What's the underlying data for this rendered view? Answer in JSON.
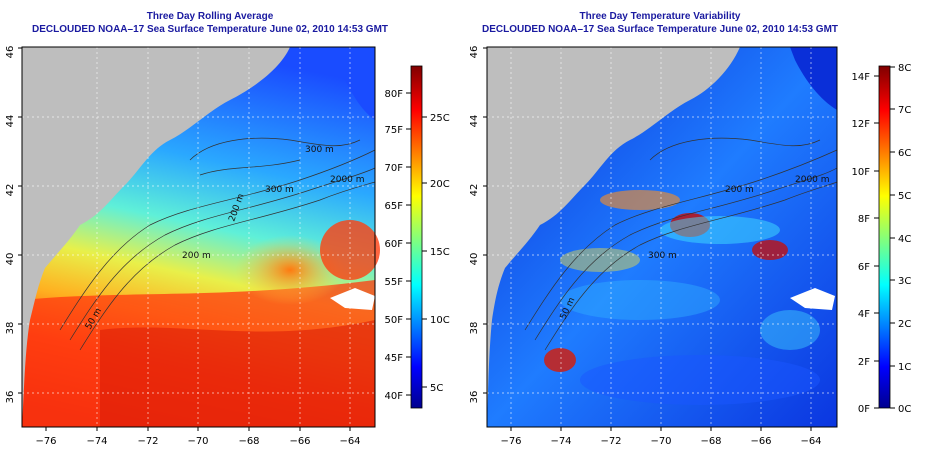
{
  "left_panel": {
    "title": "Three Day Rolling Average",
    "subtitle": "DECLOUDED NOAA–17 Sea Surface Temperature June 02, 2010 14:53 GMT",
    "lat_ticks": [
      "36",
      "38",
      "40",
      "42",
      "44",
      "46"
    ],
    "lon_ticks": [
      "−76",
      "−74",
      "−72",
      "−70",
      "−68",
      "−66",
      "−64"
    ],
    "contour_labels": [
      "50 m",
      "200 m",
      "300 m",
      "2000 m",
      "200 m",
      "300 m"
    ],
    "colorbar": {
      "f_labels": [
        "40F",
        "45F",
        "50F",
        "55F",
        "60F",
        "65F",
        "70F",
        "75F",
        "80F"
      ],
      "c_labels": [
        "5C",
        "10C",
        "15C",
        "20C",
        "25C"
      ]
    }
  },
  "right_panel": {
    "title": "Three Day Temperature Variability",
    "subtitle": "DECLOUDED NOAA–17 Sea Surface Temperature June 02, 2010 14:53 GMT",
    "lat_ticks": [
      "36",
      "38",
      "40",
      "42",
      "44",
      "46"
    ],
    "lon_ticks": [
      "−76",
      "−74",
      "−72",
      "−70",
      "−68",
      "−66",
      "−64"
    ],
    "contour_labels": [
      "50 m",
      "300 m",
      "200 m",
      "2000 m"
    ],
    "colorbar": {
      "f_labels": [
        "0F",
        "2F",
        "4F",
        "6F",
        "8F",
        "10F",
        "12F",
        "14F"
      ],
      "c_labels": [
        "0C",
        "1C",
        "2C",
        "3C",
        "4C",
        "5C",
        "6C",
        "7C",
        "8C"
      ]
    }
  },
  "colors": {
    "title": "#1a1aa0",
    "land": "#bebebe",
    "cloud": "#ffffff"
  }
}
